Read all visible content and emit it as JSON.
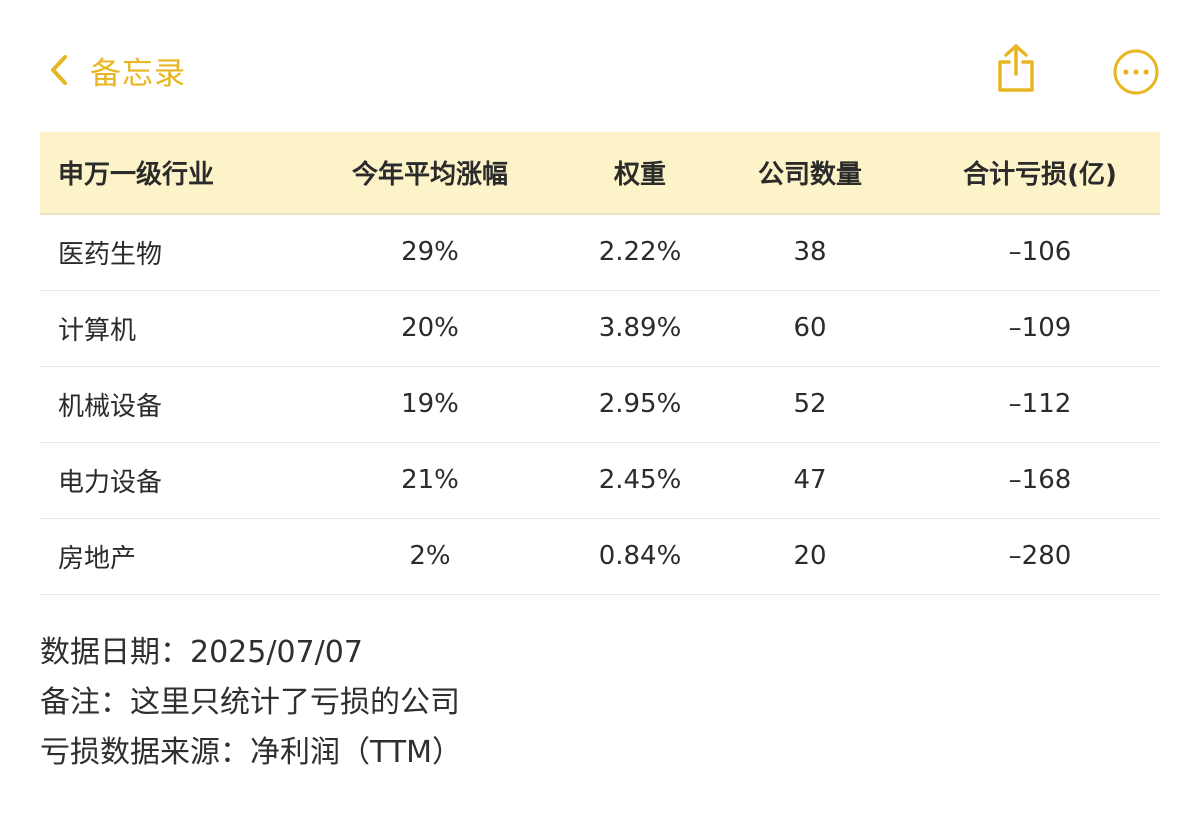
{
  "nav": {
    "back_label": "备忘录",
    "accent_color": "#E8B622",
    "icons": [
      "chevron-left-icon",
      "share-icon",
      "more-icon"
    ]
  },
  "table": {
    "header_bg": "#FCF3C9",
    "columns": [
      "申万一级行业",
      "今年平均涨幅",
      "权重",
      "公司数量",
      "合计亏损(亿)"
    ],
    "rows": [
      [
        "医药生物",
        "29%",
        "2.22%",
        "38",
        "–106"
      ],
      [
        "计算机",
        "20%",
        "3.89%",
        "60",
        "–109"
      ],
      [
        "机械设备",
        "19%",
        "2.95%",
        "52",
        "–112"
      ],
      [
        "电力设备",
        "21%",
        "2.45%",
        "47",
        "–168"
      ],
      [
        "房地产",
        "2%",
        "0.84%",
        "20",
        "–280"
      ]
    ]
  },
  "notes": {
    "date": "数据日期：2025/07/07",
    "remark": "备注：这里只统计了亏损的公司",
    "source": "亏损数据来源：净利润（TTM）"
  }
}
